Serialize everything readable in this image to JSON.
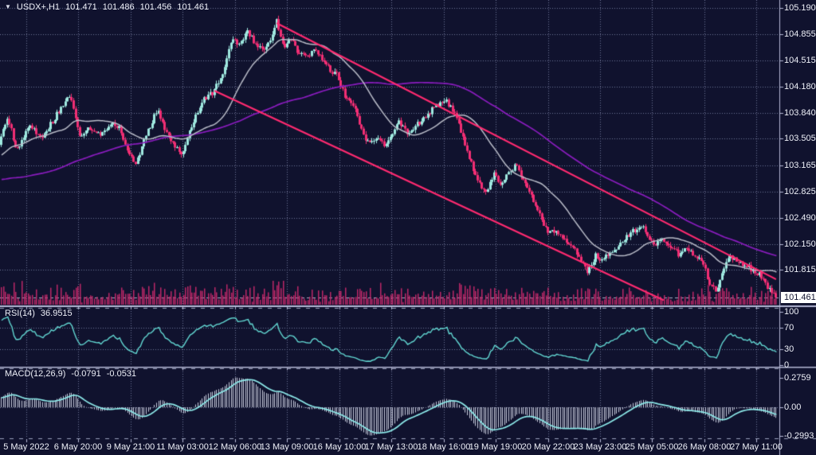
{
  "header": {
    "symbol": "USDX+,H1",
    "open": "101.471",
    "high": "101.486",
    "low": "101.456",
    "close": "101.461"
  },
  "price_axis": {
    "labels": [
      "105.190",
      "104.855",
      "104.515",
      "104.180",
      "103.840",
      "103.505",
      "103.165",
      "102.825",
      "102.490",
      "102.150",
      "101.815"
    ],
    "current": "101.461"
  },
  "time_axis": {
    "labels": [
      "5 May 2022",
      "6 May 20:00",
      "9 May 21:00",
      "11 May 03:00",
      "12 May 06:00",
      "13 May 09:00",
      "16 May 10:00",
      "17 May 13:00",
      "18 May 16:00",
      "19 May 19:00",
      "20 May 22:00",
      "23 May 23:00",
      "25 May 05:00",
      "26 May 08:00",
      "27 May 11:00"
    ]
  },
  "rsi_panel": {
    "name": "RSI(14)",
    "value": "36.9515",
    "axis": [
      "100",
      "70",
      "30",
      "0"
    ]
  },
  "macd_panel": {
    "name": "MACD(12,26,9)",
    "value1": "-0.0791",
    "value2": "-0.0531",
    "axis": [
      "0.2759",
      "0.00",
      "-0.2993"
    ]
  },
  "chart_data": {
    "type": "candlestick",
    "symbol": "USDX+",
    "timeframe": "H1",
    "title": "US Dollar Index hourly chart with descending channel, RSI(14) and MACD(12,26,9)",
    "current_ohlc": {
      "open": 101.471,
      "high": 101.486,
      "low": 101.456,
      "close": 101.461
    },
    "y_axis_range": [
      101.37,
      105.19
    ],
    "x_range_labels": [
      "5 May 2022",
      "27 May 11:00"
    ],
    "grid": true,
    "price_path": [
      [
        0,
        103.45
      ],
      [
        10,
        103.8
      ],
      [
        22,
        103.35
      ],
      [
        38,
        103.7
      ],
      [
        52,
        103.5
      ],
      [
        68,
        103.75
      ],
      [
        88,
        104.08
      ],
      [
        100,
        103.55
      ],
      [
        112,
        103.65
      ],
      [
        126,
        103.55
      ],
      [
        140,
        103.72
      ],
      [
        152,
        103.62
      ],
      [
        163,
        103.3
      ],
      [
        172,
        103.2
      ],
      [
        184,
        103.55
      ],
      [
        198,
        103.88
      ],
      [
        208,
        103.6
      ],
      [
        218,
        103.45
      ],
      [
        230,
        103.32
      ],
      [
        242,
        103.7
      ],
      [
        256,
        104.0
      ],
      [
        268,
        104.1
      ],
      [
        280,
        104.35
      ],
      [
        292,
        104.8
      ],
      [
        302,
        104.72
      ],
      [
        312,
        104.88
      ],
      [
        322,
        104.72
      ],
      [
        332,
        104.62
      ],
      [
        342,
        104.82
      ],
      [
        348,
        105.02
      ],
      [
        356,
        104.68
      ],
      [
        366,
        104.78
      ],
      [
        376,
        104.6
      ],
      [
        386,
        104.56
      ],
      [
        396,
        104.66
      ],
      [
        406,
        104.52
      ],
      [
        416,
        104.38
      ],
      [
        424,
        104.32
      ],
      [
        434,
        104.05
      ],
      [
        444,
        103.95
      ],
      [
        454,
        103.62
      ],
      [
        464,
        103.42
      ],
      [
        474,
        103.52
      ],
      [
        482,
        103.42
      ],
      [
        492,
        103.56
      ],
      [
        502,
        103.72
      ],
      [
        512,
        103.58
      ],
      [
        522,
        103.66
      ],
      [
        532,
        103.78
      ],
      [
        545,
        103.9
      ],
      [
        560,
        104.0
      ],
      [
        572,
        103.82
      ],
      [
        584,
        103.45
      ],
      [
        598,
        103.0
      ],
      [
        610,
        102.78
      ],
      [
        620,
        103.05
      ],
      [
        630,
        102.92
      ],
      [
        642,
        103.1
      ],
      [
        650,
        103.18
      ],
      [
        658,
        102.95
      ],
      [
        668,
        102.75
      ],
      [
        678,
        102.55
      ],
      [
        688,
        102.28
      ],
      [
        698,
        102.34
      ],
      [
        708,
        102.22
      ],
      [
        718,
        102.12
      ],
      [
        728,
        101.98
      ],
      [
        738,
        101.8
      ],
      [
        748,
        102.0
      ],
      [
        756,
        101.92
      ],
      [
        766,
        102.06
      ],
      [
        776,
        102.12
      ],
      [
        786,
        102.22
      ],
      [
        796,
        102.32
      ],
      [
        806,
        102.4
      ],
      [
        814,
        102.26
      ],
      [
        822,
        102.12
      ],
      [
        832,
        102.22
      ],
      [
        842,
        102.12
      ],
      [
        852,
        102.02
      ],
      [
        862,
        102.1
      ],
      [
        872,
        102.02
      ],
      [
        882,
        101.92
      ],
      [
        892,
        101.62
      ],
      [
        900,
        101.55
      ],
      [
        908,
        101.85
      ],
      [
        918,
        101.98
      ],
      [
        928,
        101.9
      ],
      [
        938,
        101.86
      ],
      [
        948,
        101.8
      ],
      [
        958,
        101.72
      ],
      [
        966,
        101.56
      ],
      [
        972,
        101.48
      ],
      [
        976,
        101.461
      ]
    ],
    "ma_seed_path": [
      [
        -364,
        103.9
      ],
      [
        -180,
        102.55
      ]
    ],
    "trend_channel": {
      "upper": [
        [
          348,
          104.99
        ],
        [
          973,
          101.7
        ]
      ],
      "lower": [
        [
          270,
          104.12
        ],
        [
          832,
          101.43
        ]
      ]
    },
    "moving_averages": [
      {
        "name": "fast-ma-gray",
        "period": 26
      },
      {
        "name": "slow-ma-purple",
        "period": 110
      }
    ],
    "indicators": [
      {
        "name": "RSI",
        "period": 14,
        "last": 36.9515,
        "levels": [
          70,
          30
        ]
      },
      {
        "name": "MACD",
        "params": [
          12,
          26,
          9
        ],
        "last_macd": -0.0791,
        "last_signal": -0.0531,
        "scale_max": 0.2759,
        "scale_min": -0.2993
      }
    ],
    "colors": {
      "background": "#10122e",
      "bull": "#9fe9e0",
      "bear": "#f22e74",
      "volume": "#bb2766",
      "trend": "#ff2a70",
      "ma_fast": "#b9bcc8",
      "ma_slow": "#8a1cbe",
      "rsi": "#62d7d2",
      "macd_signal": "#8deaea",
      "macd_hist": "#c7cbdc",
      "grid": "#6f7596",
      "separator": "#b6b9d6",
      "axis_text": "#eef0f8",
      "current_line": "#a9aec8",
      "price_tag_bg": "#ffffff",
      "price_tag_text": "#10122e"
    }
  }
}
